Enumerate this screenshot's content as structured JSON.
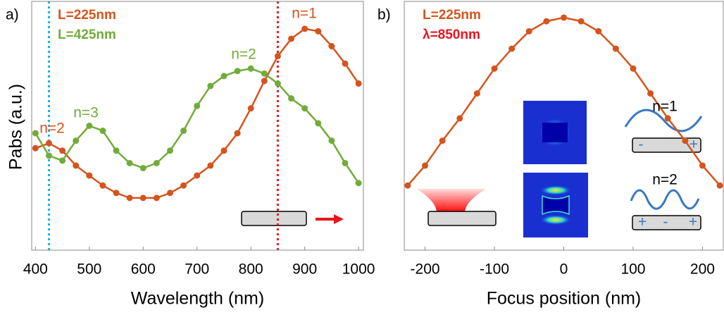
{
  "chart_data": [
    {
      "type": "line",
      "panel_label": "a)",
      "xlabel": "Wavelength (nm)",
      "ylabel": "Pabs (a.u.)",
      "x": [
        400,
        425,
        450,
        475,
        500,
        525,
        550,
        575,
        600,
        625,
        650,
        675,
        700,
        725,
        750,
        775,
        800,
        825,
        850,
        875,
        900,
        925,
        950,
        975,
        1000
      ],
      "xlim": [
        393,
        1009
      ],
      "xticks": [
        400,
        500,
        600,
        700,
        800,
        900,
        1000
      ],
      "ylim": [
        0,
        1
      ],
      "series": [
        {
          "name": "L=225nm",
          "color": "#d4541e",
          "values": [
            0.41,
            0.43,
            0.4,
            0.34,
            0.3,
            0.26,
            0.23,
            0.21,
            0.21,
            0.21,
            0.23,
            0.26,
            0.3,
            0.34,
            0.4,
            0.47,
            0.57,
            0.68,
            0.78,
            0.85,
            0.89,
            0.88,
            0.82,
            0.75,
            0.67
          ]
        },
        {
          "name": "L=425nm",
          "color": "#72ab3a",
          "values": [
            0.47,
            0.38,
            0.36,
            0.44,
            0.5,
            0.48,
            0.4,
            0.35,
            0.33,
            0.35,
            0.4,
            0.48,
            0.58,
            0.66,
            0.7,
            0.72,
            0.73,
            0.71,
            0.67,
            0.61,
            0.57,
            0.51,
            0.44,
            0.35,
            0.27
          ]
        }
      ],
      "vlines": [
        {
          "x": 425,
          "color": "#1ab0e8"
        },
        {
          "x": 850,
          "color": "#e8141e"
        }
      ],
      "annotations": [
        {
          "text": "n=1",
          "color": "#d4541e"
        },
        {
          "text": "n=2",
          "color": "#72ab3a"
        },
        {
          "text": "n=3",
          "color": "#72ab3a"
        },
        {
          "text": "n=2",
          "color": "#d4541e"
        }
      ]
    },
    {
      "type": "line",
      "panel_label": "b)",
      "xlabel": "Focus position (nm)",
      "x": [
        -225,
        -200,
        -175,
        -150,
        -125,
        -100,
        -75,
        -50,
        -25,
        0,
        25,
        50,
        75,
        100,
        125,
        150,
        175,
        200,
        225
      ],
      "xlim": [
        -230,
        230
      ],
      "xticks": [
        -200,
        -100,
        0,
        100,
        200
      ],
      "ylim": [
        0,
        1
      ],
      "series": [
        {
          "name": "L=225nm",
          "color": "#d4541e",
          "values": [
            0.26,
            0.34,
            0.44,
            0.53,
            0.63,
            0.73,
            0.81,
            0.88,
            0.92,
            0.935,
            0.92,
            0.88,
            0.81,
            0.73,
            0.63,
            0.53,
            0.44,
            0.34,
            0.26
          ]
        }
      ],
      "annotations": [
        {
          "text": "λ=850nm",
          "color": "#e8141e"
        },
        {
          "text": "n=1",
          "color": "#000000"
        },
        {
          "text": "n=2",
          "color": "#000000"
        },
        {
          "text": "-",
          "color": "#3a78c0"
        },
        {
          "text": "+",
          "color": "#3a78c0"
        },
        {
          "text": "+",
          "color": "#3a78c0"
        },
        {
          "text": "-",
          "color": "#3a78c0"
        },
        {
          "text": "+",
          "color": "#3a78c0"
        }
      ]
    }
  ]
}
